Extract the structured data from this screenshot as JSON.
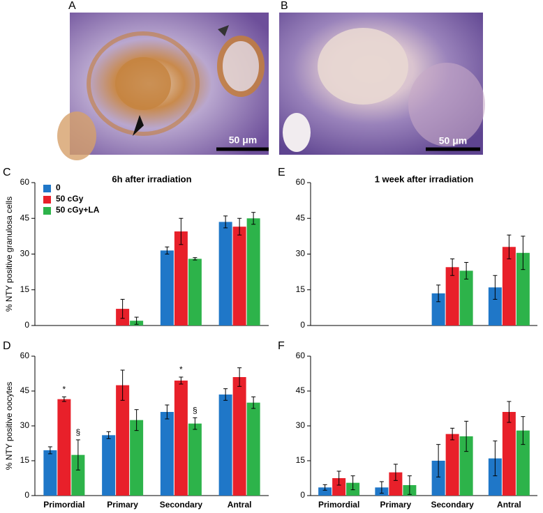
{
  "images": [
    {
      "label": "A",
      "scale_bar": "50 μm"
    },
    {
      "label": "B",
      "scale_bar": "50 μm"
    }
  ],
  "chart_data": [
    {
      "type": "bar",
      "panel": "C",
      "title": "6h after irradiation",
      "ylabel": "% NTY positive granulosa cells",
      "categories": [
        null,
        null,
        null,
        null
      ],
      "series": [
        {
          "name": "0",
          "color": "#1f77c8",
          "values": [
            0,
            0,
            31.5,
            43.5
          ],
          "errors": [
            0,
            0,
            1.5,
            2.5
          ]
        },
        {
          "name": "50 cGy",
          "color": "#e8202a",
          "values": [
            0,
            7,
            39.5,
            41.5
          ],
          "errors": [
            0,
            4,
            5.5,
            3.5
          ]
        },
        {
          "name": "50 cGy+LA",
          "color": "#2db34a",
          "values": [
            0,
            2,
            28,
            45
          ],
          "errors": [
            0,
            1.5,
            0.5,
            2.5
          ]
        }
      ],
      "ylim": [
        0,
        60
      ],
      "yticks": [
        0,
        15,
        30,
        45,
        60
      ]
    },
    {
      "type": "bar",
      "panel": "E",
      "title": "1 week after irradiation",
      "categories": [
        null,
        null,
        null,
        null
      ],
      "series": [
        {
          "color": "#1f77c8",
          "values": [
            0,
            0,
            13.5,
            16
          ],
          "errors": [
            0,
            0,
            3.5,
            5
          ]
        },
        {
          "color": "#e8202a",
          "values": [
            0,
            0,
            24.5,
            33
          ],
          "errors": [
            0,
            0,
            3.5,
            5
          ]
        },
        {
          "color": "#2db34a",
          "values": [
            0,
            0,
            23,
            30.5
          ],
          "errors": [
            0,
            0,
            3.5,
            7
          ]
        }
      ],
      "ylim": [
        0,
        60
      ],
      "yticks": [
        0,
        15,
        30,
        45,
        60
      ]
    },
    {
      "type": "bar",
      "panel": "D",
      "ylabel": "% NTY positive oocytes",
      "categories": [
        "Primordial",
        "Primary",
        "Secondary",
        "Antral"
      ],
      "series": [
        {
          "color": "#1f77c8",
          "values": [
            19.5,
            26,
            36,
            43.5
          ],
          "errors": [
            1.5,
            1.5,
            3,
            2.5
          ]
        },
        {
          "color": "#e8202a",
          "values": [
            41.5,
            47.5,
            49.5,
            51
          ],
          "errors": [
            1,
            6.5,
            1.5,
            4
          ]
        },
        {
          "color": "#2db34a",
          "values": [
            17.5,
            32.5,
            31,
            40
          ],
          "errors": [
            6.5,
            4.5,
            2.5,
            2.5
          ]
        }
      ],
      "annotations": [
        {
          "text": "*",
          "series": 1,
          "category": 0
        },
        {
          "text": "§",
          "series": 2,
          "category": 0
        },
        {
          "text": "*",
          "series": 1,
          "category": 2
        },
        {
          "text": "§",
          "series": 2,
          "category": 2
        }
      ],
      "ylim": [
        0,
        60
      ],
      "yticks": [
        0,
        15,
        30,
        45,
        60
      ]
    },
    {
      "type": "bar",
      "panel": "F",
      "categories": [
        "Primordial",
        "Primary",
        "Secondary",
        "Antral"
      ],
      "series": [
        {
          "color": "#1f77c8",
          "values": [
            3.5,
            3.5,
            15,
            16
          ],
          "errors": [
            1.2,
            2.5,
            7,
            7.5
          ]
        },
        {
          "color": "#e8202a",
          "values": [
            7.5,
            10,
            26.5,
            36
          ],
          "errors": [
            3,
            3.5,
            2.5,
            4.5
          ]
        },
        {
          "color": "#2db34a",
          "values": [
            5.5,
            4.5,
            25.5,
            28
          ],
          "errors": [
            3,
            4,
            6.5,
            6
          ]
        }
      ],
      "ylim": [
        0,
        60
      ],
      "yticks": [
        0,
        15,
        30,
        45,
        60
      ]
    }
  ]
}
